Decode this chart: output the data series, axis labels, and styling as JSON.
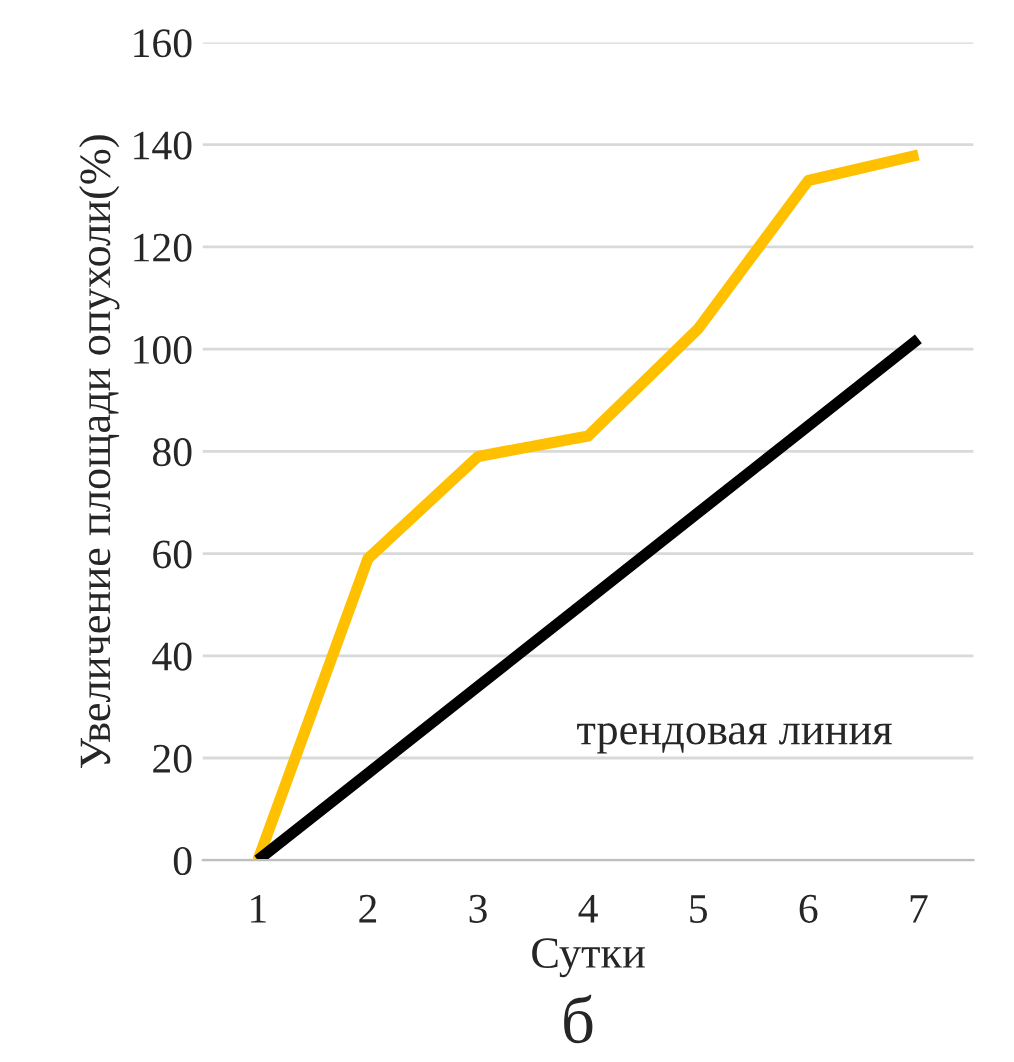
{
  "chart_data": {
    "type": "line",
    "xlabel": "Сутки",
    "ylabel": "Увеличение площади опухоли(%)",
    "categories": [
      "1",
      "2",
      "3",
      "4",
      "5",
      "6",
      "7"
    ],
    "series": [
      {
        "color": "#ffc000",
        "values": [
          0,
          59,
          79,
          83,
          104,
          133,
          138
        ]
      },
      {
        "color": "#000000",
        "values": [
          0,
          17,
          34,
          51,
          68,
          85,
          102
        ]
      }
    ],
    "ylim": [
      0,
      160
    ],
    "yticks": [
      0,
      20,
      40,
      60,
      80,
      100,
      120,
      140,
      160
    ],
    "grid": "y",
    "legend": false,
    "annotations": [
      "трендовая линия",
      "б"
    ]
  }
}
